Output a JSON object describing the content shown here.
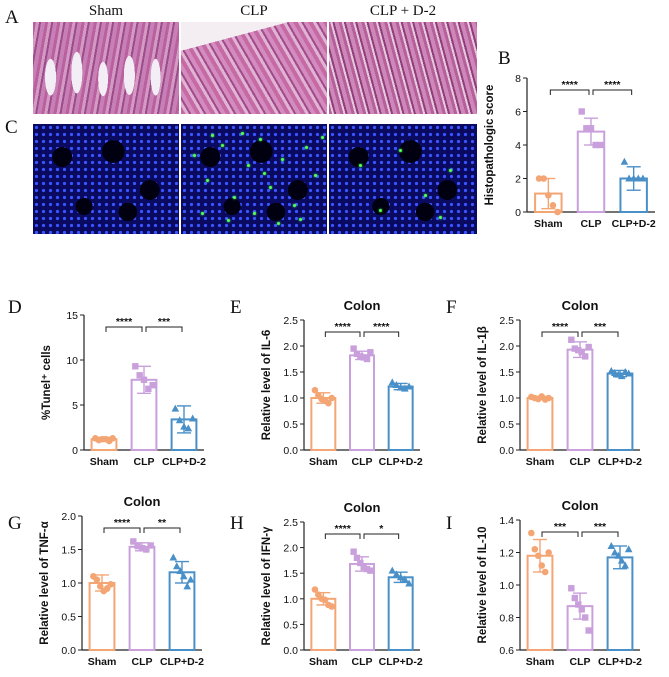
{
  "panel_letters": {
    "A": "A",
    "B": "B",
    "C": "C",
    "D": "D",
    "E": "E",
    "F": "F",
    "G": "G",
    "H": "H",
    "I": "I"
  },
  "image_titles": [
    "Sham",
    "CLP",
    "CLP + D-2"
  ],
  "colors": {
    "sham": "#f4a574",
    "clp": "#c9a0dc",
    "d2": "#4a90c8"
  },
  "chart_data": [
    {
      "id": "B",
      "type": "bar",
      "title": "",
      "ylabel": "Histopathologic score",
      "categories": [
        "Sham",
        "CLP",
        "CLP+D-2"
      ],
      "values": [
        1.1,
        4.8,
        2.0
      ],
      "errors": [
        0.9,
        0.8,
        0.7
      ],
      "ylim": [
        0,
        8
      ],
      "yticks": [
        "0",
        "2",
        "4",
        "6",
        "8"
      ],
      "points": [
        [
          2,
          2,
          1,
          0.4,
          0
        ],
        [
          6,
          5,
          5,
          4,
          4
        ],
        [
          3,
          2,
          2,
          2,
          2
        ]
      ],
      "markers": [
        "circle",
        "square",
        "triangle"
      ],
      "sig": [
        {
          "from": 0,
          "to": 1,
          "label": "****"
        },
        {
          "from": 1,
          "to": 2,
          "label": "****"
        }
      ]
    },
    {
      "id": "D",
      "type": "bar",
      "title": "",
      "ylabel": "%Tunel⁺ cells",
      "categories": [
        "Sham",
        "CLP",
        "CLP+D-2"
      ],
      "values": [
        1.2,
        7.8,
        3.4
      ],
      "errors": [
        0.2,
        1.5,
        1.5
      ],
      "ylim": [
        0,
        15
      ],
      "yticks": [
        "0",
        "5",
        "10",
        "15"
      ],
      "points": [
        [
          1.3,
          1.1,
          1.2,
          1.2,
          1.0,
          1.3
        ],
        [
          9.3,
          8.3,
          7.8,
          6.8,
          7.2
        ],
        [
          4.6,
          3.3,
          2.6,
          2.4,
          3.5
        ]
      ],
      "markers": [
        "circle",
        "square",
        "triangle"
      ],
      "sig": [
        {
          "from": 0,
          "to": 1,
          "label": "****"
        },
        {
          "from": 1,
          "to": 2,
          "label": "***"
        }
      ]
    },
    {
      "id": "E",
      "type": "bar",
      "title": "Colon",
      "ylabel": "Relative level of IL-6",
      "categories": [
        "Sham",
        "CLP",
        "CLP+D-2"
      ],
      "values": [
        1.0,
        1.82,
        1.22
      ],
      "errors": [
        0.1,
        0.08,
        0.06
      ],
      "ylim": [
        0,
        2.5
      ],
      "yticks": [
        "0.0",
        "0.5",
        "1.0",
        "1.5",
        "2.0",
        "2.5"
      ],
      "points": [
        [
          1.15,
          1.05,
          0.98,
          0.95,
          0.9,
          1.0
        ],
        [
          1.95,
          1.85,
          1.8,
          1.78,
          1.75,
          1.88
        ],
        [
          1.3,
          1.25,
          1.2,
          1.18,
          1.22
        ]
      ],
      "markers": [
        "circle",
        "square",
        "triangle"
      ],
      "sig": [
        {
          "from": 0,
          "to": 1,
          "label": "****"
        },
        {
          "from": 1,
          "to": 2,
          "label": "****"
        }
      ]
    },
    {
      "id": "F",
      "type": "bar",
      "title": "Colon",
      "ylabel": "Relative level of IL-1β",
      "categories": [
        "Sham",
        "CLP",
        "CLP+D-2"
      ],
      "values": [
        1.0,
        1.93,
        1.47
      ],
      "errors": [
        0.03,
        0.15,
        0.06
      ],
      "ylim": [
        0,
        2.5
      ],
      "yticks": [
        "0.0",
        "0.5",
        "1.0",
        "1.5",
        "2.0",
        "2.5"
      ],
      "points": [
        [
          1.02,
          1.0,
          0.98,
          1.03,
          0.97,
          1.0
        ],
        [
          2.12,
          1.95,
          1.92,
          1.88,
          1.8,
          1.98
        ],
        [
          1.52,
          1.48,
          1.45,
          1.42,
          1.5,
          1.47
        ]
      ],
      "markers": [
        "circle",
        "square",
        "triangle"
      ],
      "sig": [
        {
          "from": 0,
          "to": 1,
          "label": "****"
        },
        {
          "from": 1,
          "to": 2,
          "label": "***"
        }
      ]
    },
    {
      "id": "G",
      "type": "bar",
      "title": "Colon",
      "ylabel": "Relative level of TNF-α",
      "categories": [
        "Sham",
        "CLP",
        "CLP+D-2"
      ],
      "values": [
        1.0,
        1.54,
        1.16
      ],
      "errors": [
        0.12,
        0.06,
        0.16
      ],
      "ylim": [
        0,
        2.0
      ],
      "yticks": [
        "0.0",
        "0.5",
        "1.0",
        "1.5",
        "2.0"
      ],
      "points": [
        [
          1.1,
          1.05,
          0.95,
          0.88,
          0.92,
          0.98
        ],
        [
          1.62,
          1.55,
          1.52,
          1.5,
          1.56
        ],
        [
          1.38,
          1.25,
          1.18,
          1.1,
          0.95,
          1.05
        ]
      ],
      "markers": [
        "circle",
        "square",
        "triangle"
      ],
      "sig": [
        {
          "from": 0,
          "to": 1,
          "label": "****"
        },
        {
          "from": 1,
          "to": 2,
          "label": "**"
        }
      ]
    },
    {
      "id": "H",
      "type": "bar",
      "title": "Colon",
      "ylabel": "Relative level of IFN-γ",
      "categories": [
        "Sham",
        "CLP",
        "CLP+D-2"
      ],
      "values": [
        1.0,
        1.68,
        1.42
      ],
      "errors": [
        0.12,
        0.14,
        0.1
      ],
      "ylim": [
        0,
        2.5
      ],
      "yticks": [
        "0.0",
        "0.5",
        "1.0",
        "1.5",
        "2.0",
        "2.5"
      ],
      "points": [
        [
          1.18,
          1.08,
          1.0,
          0.98,
          0.88,
          0.85
        ],
        [
          1.92,
          1.8,
          1.7,
          1.62,
          1.58,
          1.55
        ],
        [
          1.55,
          1.48,
          1.42,
          1.38,
          1.3
        ]
      ],
      "markers": [
        "circle",
        "square",
        "triangle"
      ],
      "sig": [
        {
          "from": 0,
          "to": 1,
          "label": "****"
        },
        {
          "from": 1,
          "to": 2,
          "label": "*"
        }
      ]
    },
    {
      "id": "I",
      "type": "bar",
      "title": "Colon",
      "ylabel": "Relative level of IL-10",
      "categories": [
        "Sham",
        "CLP",
        "CLP+D-2"
      ],
      "values": [
        1.18,
        0.87,
        1.17
      ],
      "errors": [
        0.1,
        0.08,
        0.07
      ],
      "ylim": [
        0.6,
        1.4
      ],
      "yticks": [
        "0.6",
        "0.8",
        "1.0",
        "1.2",
        "1.4"
      ],
      "points": [
        [
          1.32,
          1.22,
          1.18,
          1.12,
          1.08,
          1.2
        ],
        [
          0.98,
          0.92,
          0.88,
          0.85,
          0.8,
          0.72
        ],
        [
          1.24,
          1.2,
          1.18,
          1.15,
          1.12,
          1.22
        ]
      ],
      "markers": [
        "circle",
        "square",
        "triangle"
      ],
      "sig": [
        {
          "from": 0,
          "to": 1,
          "label": "***"
        },
        {
          "from": 1,
          "to": 2,
          "label": "***"
        }
      ]
    }
  ]
}
